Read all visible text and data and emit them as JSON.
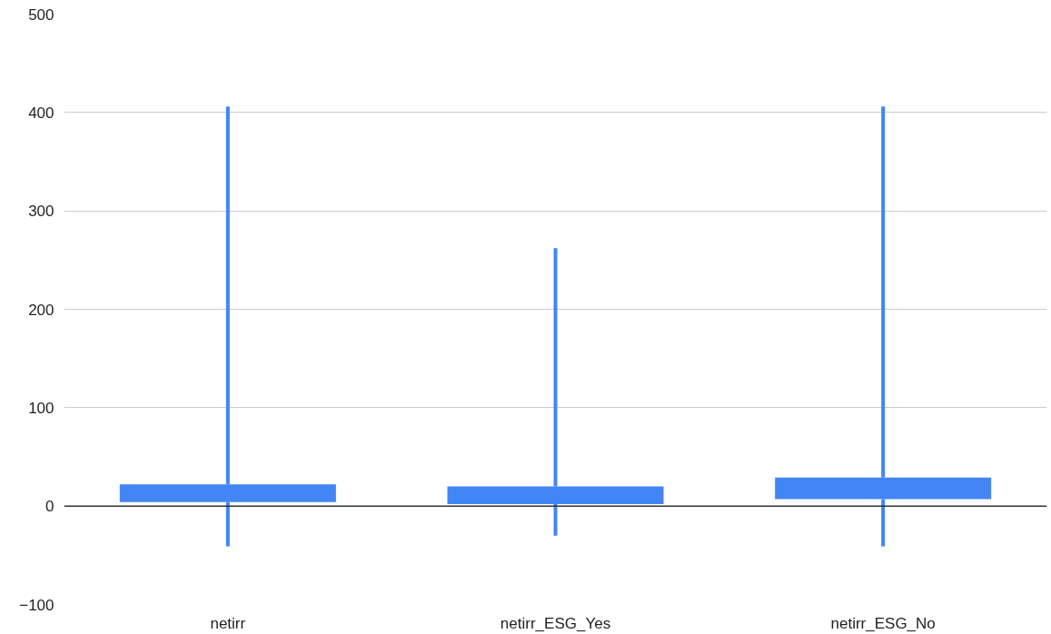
{
  "chart_data": {
    "type": "candlestick",
    "categories": [
      "netirr",
      "netirr_ESG_Yes",
      "netirr_ESG_No"
    ],
    "ohlc": [
      [
        4,
        406,
        -41,
        22
      ],
      [
        2,
        262,
        -30,
        20
      ],
      [
        7,
        406,
        -41,
        29
      ]
    ],
    "color": "#4285f4",
    "ylim": [
      -100,
      500
    ],
    "yticks": [
      -100,
      0,
      100,
      200,
      300,
      400,
      500
    ],
    "grid": "y",
    "ref_lines": [
      {
        "axis": "y",
        "value": 0,
        "color": "#333333"
      }
    ]
  }
}
